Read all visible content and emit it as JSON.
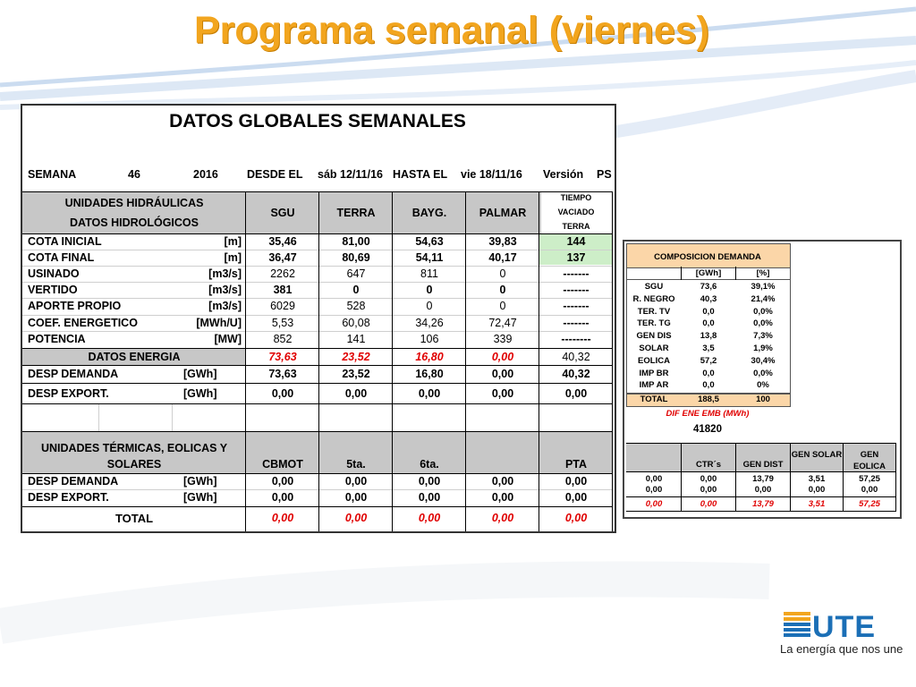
{
  "title": "Programa semanal (viernes)",
  "main": {
    "heading": "DATOS GLOBALES SEMANALES",
    "semana_label": "SEMANA",
    "semana_num": "46",
    "year": "2016",
    "desde_label": "DESDE EL",
    "desde_date": "sáb 12/11/16",
    "hasta_label": "HASTA EL",
    "hasta_date": "vie 18/11/16",
    "version_label": "Versión",
    "version_value": "PS",
    "hydro_header1": "UNIDADES HIDRÁULICAS",
    "hydro_header2": "DATOS HIDROLÓGICOS",
    "col_sgu": "SGU",
    "col_terra": "TERRA",
    "col_bayg": "BAYG.",
    "col_palmar": "PALMAR",
    "col_tiempo1": "TIEMPO",
    "col_tiempo2": "VACIADO",
    "col_tiempo3": "TERRA",
    "rows": [
      {
        "label": "COTA INICIAL",
        "unit": "[m]",
        "v": [
          "35,46",
          "81,00",
          "54,63",
          "39,83",
          "144"
        ]
      },
      {
        "label": "COTA FINAL",
        "unit": "[m]",
        "v": [
          "36,47",
          "80,69",
          "54,11",
          "40,17",
          "137"
        ]
      },
      {
        "label": "USINADO",
        "unit": "[m3/s]",
        "v": [
          "2262",
          "647",
          "811",
          "0",
          "-------"
        ]
      },
      {
        "label": "VERTIDO",
        "unit": "[m3/s]",
        "v": [
          "381",
          "0",
          "0",
          "0",
          "-------"
        ]
      },
      {
        "label": "APORTE PROPIO",
        "unit": "[m3/s]",
        "v": [
          "6029",
          "528",
          "0",
          "0",
          "-------"
        ]
      },
      {
        "label": "COEF. ENERGETICO",
        "unit": "[MWh/U]",
        "v": [
          "5,53",
          "60,08",
          "34,26",
          "72,47",
          "-------"
        ]
      },
      {
        "label": "POTENCIA",
        "unit": "[MW]",
        "v": [
          "852",
          "141",
          "106",
          "339",
          "--------"
        ]
      }
    ],
    "datos_energia_label": "DATOS ENERGIA",
    "datos_energia": [
      "73,63",
      "23,52",
      "16,80",
      "0,00",
      "40,32"
    ],
    "desp_demanda_label": "DESP DEMANDA",
    "desp_export_label": "DESP EXPORT.",
    "gwh": "[GWh]",
    "hydro_desp_demanda": [
      "73,63",
      "23,52",
      "16,80",
      "0,00",
      "40,32"
    ],
    "hydro_desp_export": [
      "0,00",
      "0,00",
      "0,00",
      "0,00",
      "0,00"
    ],
    "thermal_header1": "UNIDADES TÉRMICAS, EOLICAS Y",
    "thermal_header2": "SOLARES",
    "thermal_cols": [
      "CBMOT",
      "5ta.",
      "6ta.",
      "",
      "PTA"
    ],
    "thermal_desp_demanda": [
      "0,00",
      "0,00",
      "0,00",
      "0,00",
      "0,00"
    ],
    "thermal_desp_export": [
      "0,00",
      "0,00",
      "0,00",
      "0,00",
      "0,00"
    ],
    "total_label": "TOTAL",
    "total": [
      "0,00",
      "0,00",
      "0,00",
      "0,00",
      "0,00"
    ]
  },
  "side": {
    "comp_header": "COMPOSICION DEMANDA",
    "col_gwh": "[GWh]",
    "col_pct": "[%]",
    "rows": [
      {
        "label": "SGU",
        "gwh": "73,6",
        "pct": "39,1%"
      },
      {
        "label": "R. NEGRO",
        "gwh": "40,3",
        "pct": "21,4%"
      },
      {
        "label": "TER. TV",
        "gwh": "0,0",
        "pct": "0,0%"
      },
      {
        "label": "TER. TG",
        "gwh": "0,0",
        "pct": "0,0%"
      },
      {
        "label": "GEN DIS",
        "gwh": "13,8",
        "pct": "7,3%"
      },
      {
        "label": "SOLAR",
        "gwh": "3,5",
        "pct": "1,9%"
      },
      {
        "label": "EOLICA",
        "gwh": "57,2",
        "pct": "30,4%"
      },
      {
        "label": "IMP BR",
        "gwh": "0,0",
        "pct": "0,0%"
      },
      {
        "label": "IMP AR",
        "gwh": "0,0",
        "pct": "0%"
      }
    ],
    "total_label": "TOTAL",
    "total_gwh": "188,5",
    "total_pct": "100",
    "dif_label": "DIF ENE EMB (MWh)",
    "dif_value": "41820",
    "gen_cols": [
      "",
      "CTR´s",
      "GEN DIST",
      "GEN SOLAR",
      "GEN EOLICA"
    ],
    "gen_rows": [
      [
        "0,00",
        "0,00",
        "13,79",
        "3,51",
        "57,25"
      ],
      [
        "0,00",
        "0,00",
        "0,00",
        "0,00",
        "0,00"
      ]
    ],
    "gen_total": [
      "0,00",
      "0,00",
      "13,79",
      "3,51",
      "57,25"
    ]
  },
  "logo": {
    "brand": "UTE",
    "slogan": "La energía que nos une"
  },
  "colors": {
    "title": "#f2a51e",
    "header_grey": "#c7c7c7",
    "highlight_green": "#cdeec8",
    "highlight_orange": "#fbd6a8",
    "red_values": "#e00000",
    "logo_blue": "#1b6fb6"
  }
}
